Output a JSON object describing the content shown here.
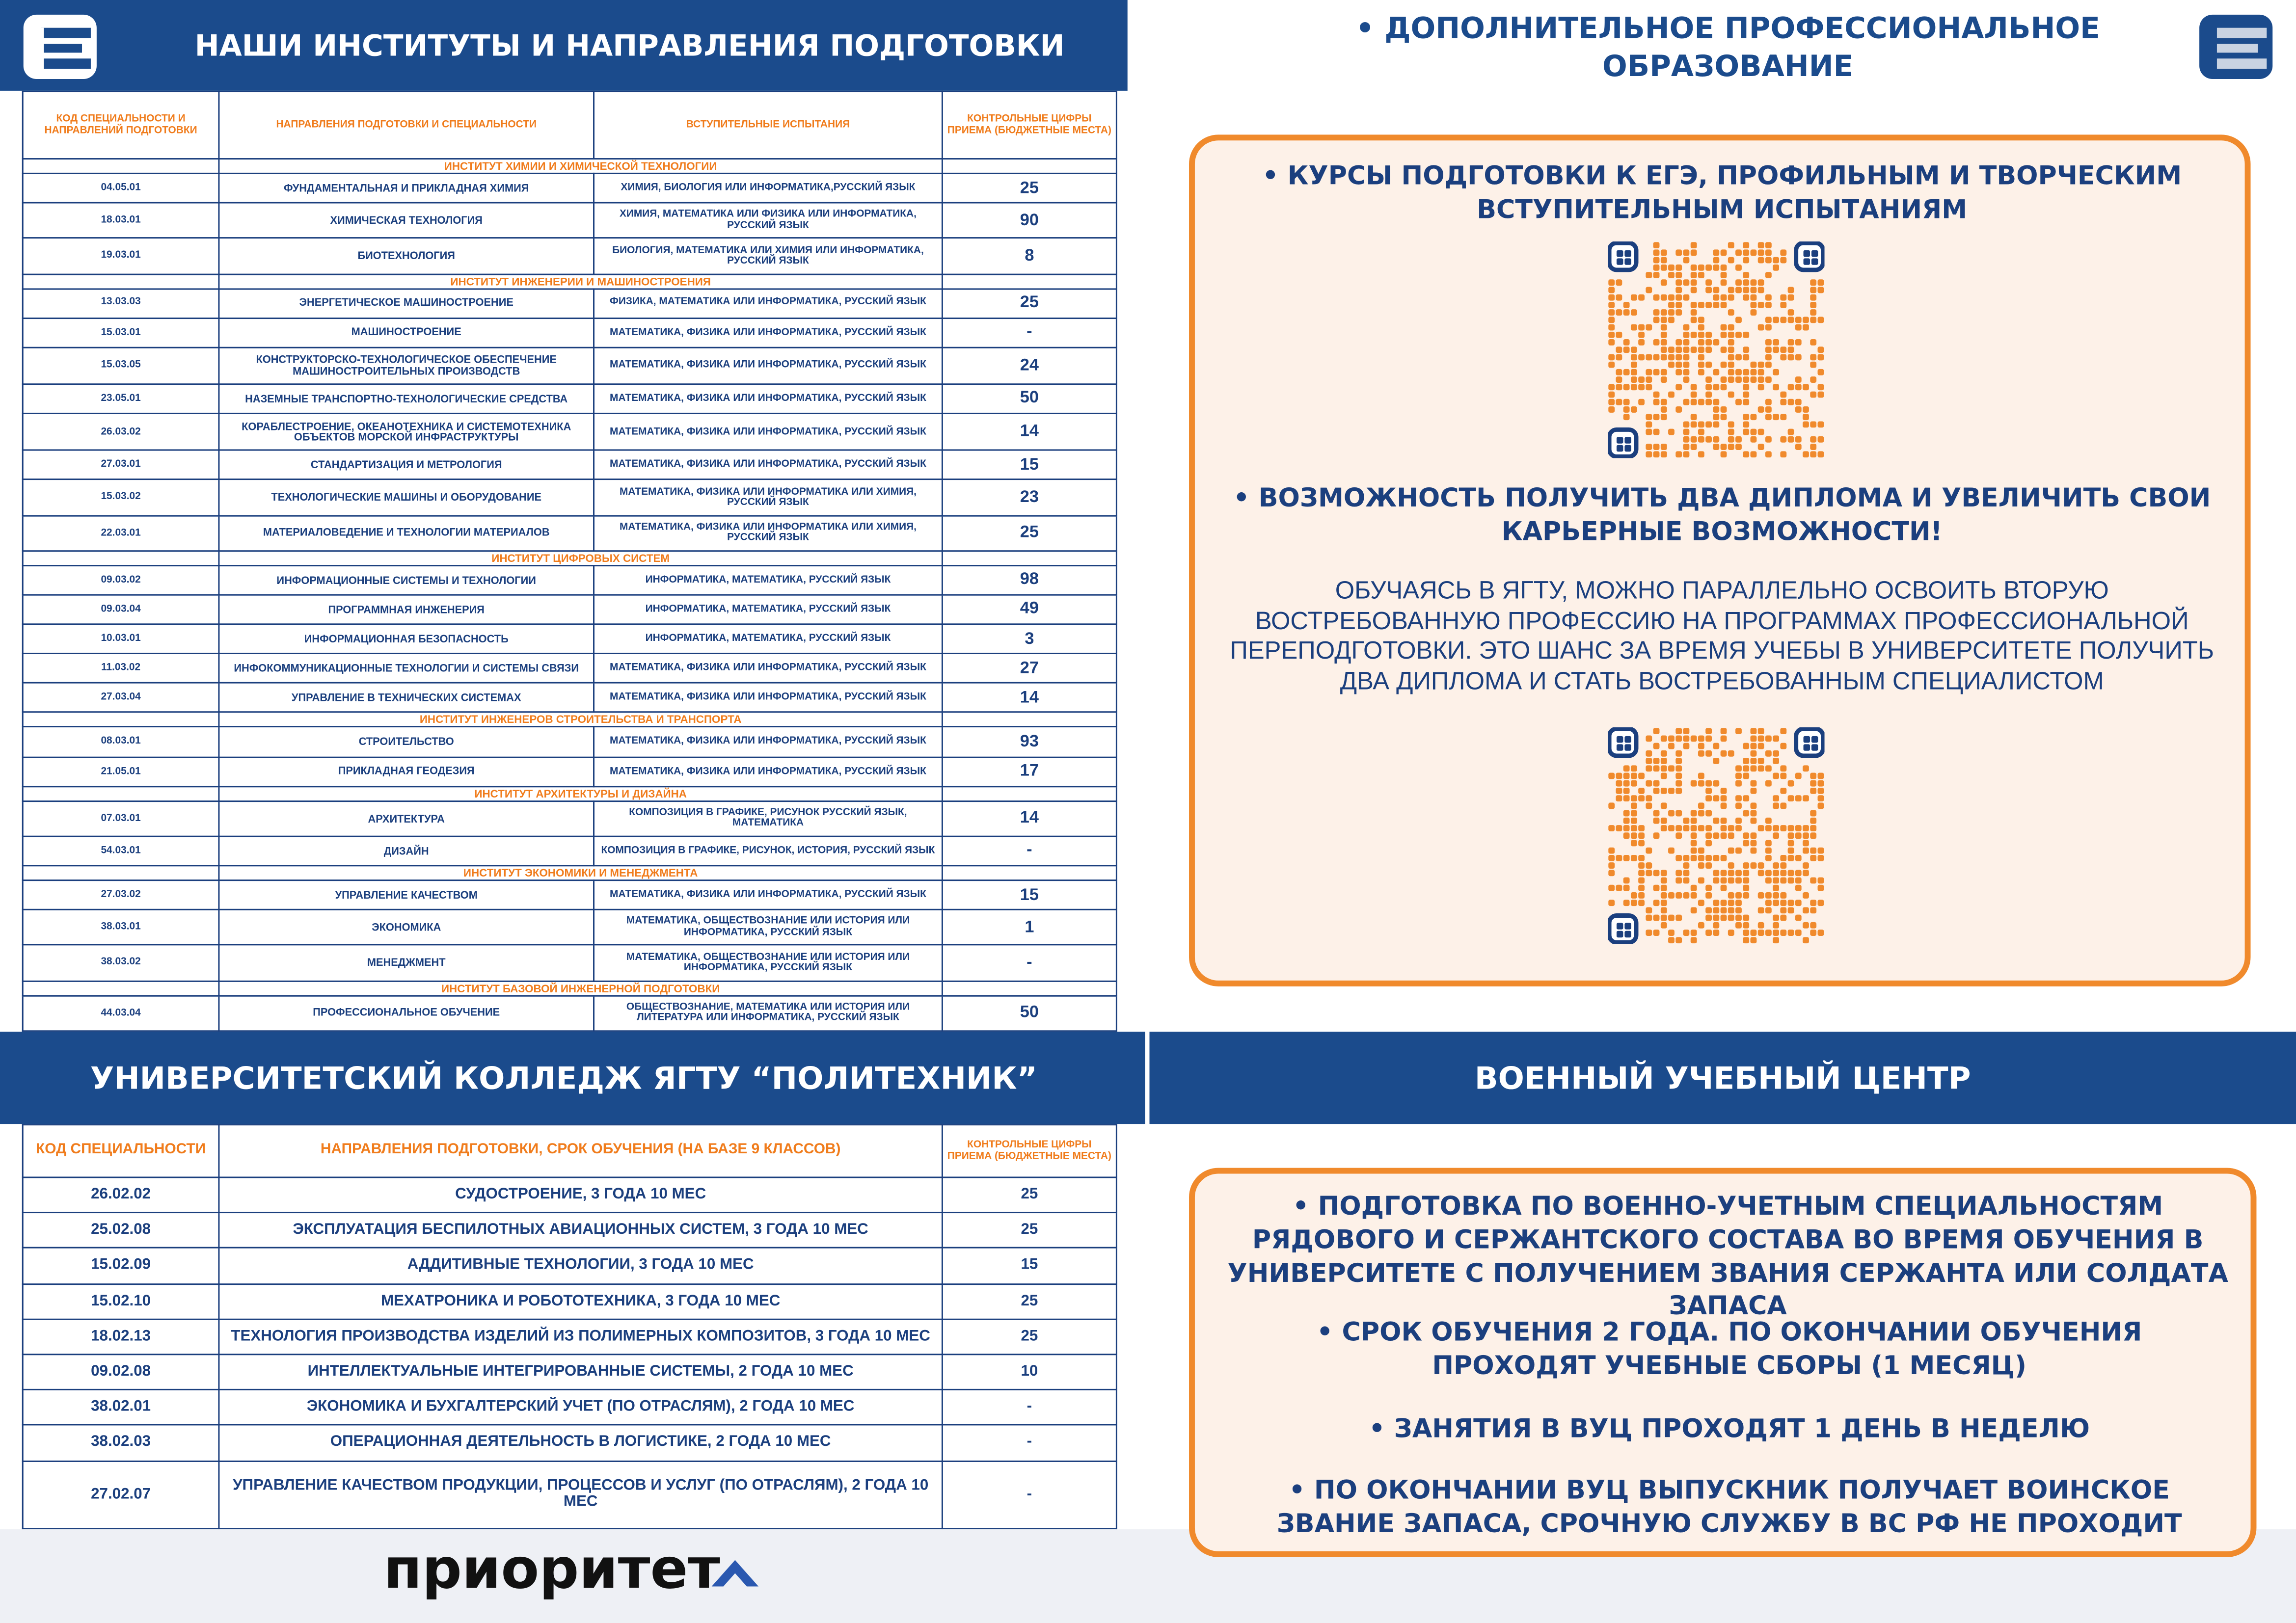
{
  "left_header": {
    "title": "НАШИ ИНСТИТУТЫ И НАПРАВЛЕНИЯ ПОДГОТОВКИ"
  },
  "institutes_table": {
    "headers": [
      "КОД СПЕЦИАЛЬНОСТИ И НАПРАВЛЕНИЙ ПОДГОТОВКИ",
      "НАПРАВЛЕНИЯ ПОДГОТОВКИ И СПЕЦИАЛЬНОСТИ",
      "ВСТУПИТЕЛЬНЫЕ ИСПЫТАНИЯ",
      "КОНТРОЛЬНЫЕ ЦИФРЫ ПРИЕМА (БЮДЖЕТНЫЕ МЕСТА)"
    ],
    "groups": [
      {
        "name": "ИНСТИТУТ ХИМИИ И ХИМИЧЕСКОЙ ТЕХНОЛОГИИ",
        "rows": [
          {
            "code": "04.05.01",
            "program": "ФУНДАМЕНТАЛЬНАЯ И ПРИКЛАДНАЯ ХИМИЯ",
            "exams": "ХИМИЯ, БИОЛОГИЯ ИЛИ ИНФОРМАТИКА,РУССКИЙ ЯЗЫК",
            "places": 25
          },
          {
            "code": "18.03.01",
            "program": "ХИМИЧЕСКАЯ ТЕХНОЛОГИЯ",
            "exams": "ХИМИЯ, МАТЕМАТИКА ИЛИ ФИЗИКА ИЛИ ИНФОРМАТИКА, РУССКИЙ ЯЗЫК",
            "places": 90
          },
          {
            "code": "19.03.01",
            "program": "БИОТЕХНОЛОГИЯ",
            "exams": "БИОЛОГИЯ, МАТЕМАТИКА ИЛИ ХИМИЯ ИЛИ ИНФОРМАТИКА, РУССКИЙ ЯЗЫК",
            "places": 8
          }
        ]
      },
      {
        "name": "ИНСТИТУТ ИНЖЕНЕРИИ И МАШИНОСТРОЕНИЯ",
        "rows": [
          {
            "code": "13.03.03",
            "program": "ЭНЕРГЕТИЧЕСКОЕ МАШИНОСТРОЕНИЕ",
            "exams": "ФИЗИКА, МАТЕМАТИКА ИЛИ ИНФОРМАТИКА, РУССКИЙ ЯЗЫК",
            "places": 25
          },
          {
            "code": "15.03.01",
            "program": "МАШИНОСТРОЕНИЕ",
            "exams": "МАТЕМАТИКА, ФИЗИКА ИЛИ ИНФОРМАТИКА, РУССКИЙ ЯЗЫК",
            "places": "-"
          },
          {
            "code": "15.03.05",
            "program": "КОНСТРУКТОРСКО-ТЕХНОЛОГИЧЕСКОЕ ОБЕСПЕЧЕНИЕ МАШИНОСТРОИТЕЛЬНЫХ ПРОИЗВОДСТВ",
            "exams": "МАТЕМАТИКА, ФИЗИКА ИЛИ ИНФОРМАТИКА, РУССКИЙ ЯЗЫК",
            "places": 24
          },
          {
            "code": "23.05.01",
            "program": "НАЗЕМНЫЕ ТРАНСПОРТНО-ТЕХНОЛОГИЧЕСКИЕ СРЕДСТВА",
            "exams": "МАТЕМАТИКА, ФИЗИКА ИЛИ ИНФОРМАТИКА, РУССКИЙ ЯЗЫК",
            "places": 50
          },
          {
            "code": "26.03.02",
            "program": "КОРАБЛЕСТРОЕНИЕ, ОКЕАНОТЕХНИКА И СИСТЕМОТЕХНИКА ОБЪЕКТОВ МОРСКОЙ ИНФРАСТРУКТУРЫ",
            "exams": "МАТЕМАТИКА, ФИЗИКА ИЛИ ИНФОРМАТИКА, РУССКИЙ ЯЗЫК",
            "places": 14
          },
          {
            "code": "27.03.01",
            "program": "СТАНДАРТИЗАЦИЯ И МЕТРОЛОГИЯ",
            "exams": "МАТЕМАТИКА, ФИЗИКА ИЛИ ИНФОРМАТИКА, РУССКИЙ ЯЗЫК",
            "places": 15
          },
          {
            "code": "15.03.02",
            "program": "ТЕХНОЛОГИЧЕСКИЕ МАШИНЫ И ОБОРУДОВАНИЕ",
            "exams": "МАТЕМАТИКА, ФИЗИКА ИЛИ ИНФОРМАТИКА ИЛИ ХИМИЯ, РУССКИЙ ЯЗЫК",
            "places": 23
          },
          {
            "code": "22.03.01",
            "program": "МАТЕРИАЛОВЕДЕНИЕ И ТЕХНОЛОГИИ МАТЕРИАЛОВ",
            "exams": "МАТЕМАТИКА, ФИЗИКА ИЛИ ИНФОРМАТИКА ИЛИ ХИМИЯ, РУССКИЙ ЯЗЫК",
            "places": 25
          }
        ]
      },
      {
        "name": "ИНСТИТУТ ЦИФРОВЫХ СИСТЕМ",
        "rows": [
          {
            "code": "09.03.02",
            "program": "ИНФОРМАЦИОННЫЕ СИСТЕМЫ И ТЕХНОЛОГИИ",
            "exams": "ИНФОРМАТИКА, МАТЕМАТИКА, РУССКИЙ ЯЗЫК",
            "places": 98
          },
          {
            "code": "09.03.04",
            "program": "ПРОГРАММНАЯ ИНЖЕНЕРИЯ",
            "exams": "ИНФОРМАТИКА, МАТЕМАТИКА, РУССКИЙ ЯЗЫК",
            "places": 49
          },
          {
            "code": "10.03.01",
            "program": "ИНФОРМАЦИОННАЯ БЕЗОПАСНОСТЬ",
            "exams": "ИНФОРМАТИКА, МАТЕМАТИКА, РУССКИЙ ЯЗЫК",
            "places": 3
          },
          {
            "code": "11.03.02",
            "program": "ИНФОКОММУНИКАЦИОННЫЕ ТЕХНОЛОГИИ И СИСТЕМЫ СВЯЗИ",
            "exams": "МАТЕМАТИКА, ФИЗИКА ИЛИ ИНФОРМАТИКА, РУССКИЙ ЯЗЫК",
            "places": 27
          },
          {
            "code": "27.03.04",
            "program": "УПРАВЛЕНИЕ В ТЕХНИЧЕСКИХ СИСТЕМАХ",
            "exams": "МАТЕМАТИКА, ФИЗИКА ИЛИ ИНФОРМАТИКА, РУССКИЙ ЯЗЫК",
            "places": 14
          }
        ]
      },
      {
        "name": "ИНСТИТУТ ИНЖЕНЕРОВ СТРОИТЕЛЬСТВА И ТРАНСПОРТА",
        "rows": [
          {
            "code": "08.03.01",
            "program": "СТРОИТЕЛЬСТВО",
            "exams": "МАТЕМАТИКА, ФИЗИКА ИЛИ ИНФОРМАТИКА, РУССКИЙ ЯЗЫК",
            "places": 93
          },
          {
            "code": "21.05.01",
            "program": "ПРИКЛАДНАЯ ГЕОДЕЗИЯ",
            "exams": "МАТЕМАТИКА, ФИЗИКА ИЛИ ИНФОРМАТИКА, РУССКИЙ ЯЗЫК",
            "places": 17
          }
        ]
      },
      {
        "name": "ИНСТИТУТ АРХИТЕКТУРЫ И ДИЗАЙНА",
        "rows": [
          {
            "code": "07.03.01",
            "program": "АРХИТЕКТУРА",
            "exams": "КОМПОЗИЦИЯ В ГРАФИКЕ, РИСУНОК РУССКИЙ ЯЗЫК, МАТЕМАТИКА",
            "places": 14
          },
          {
            "code": "54.03.01",
            "program": "ДИЗАЙН",
            "exams": "КОМПОЗИЦИЯ В ГРАФИКЕ, РИСУНОК, ИСТОРИЯ, РУССКИЙ ЯЗЫК",
            "places": "-"
          }
        ]
      },
      {
        "name": "ИНСТИТУТ ЭКОНОМИКИ И МЕНЕДЖМЕНТА",
        "rows": [
          {
            "code": "27.03.02",
            "program": "УПРАВЛЕНИЕ КАЧЕСТВОМ",
            "exams": "МАТЕМАТИКА, ФИЗИКА ИЛИ ИНФОРМАТИКА, РУССКИЙ ЯЗЫК",
            "places": 15
          },
          {
            "code": "38.03.01",
            "program": "ЭКОНОМИКА",
            "exams": "МАТЕМАТИКА, ОБЩЕСТВОЗНАНИЕ ИЛИ ИСТОРИЯ ИЛИ ИНФОРМАТИКА, РУССКИЙ ЯЗЫК",
            "places": 1
          },
          {
            "code": "38.03.02",
            "program": "МЕНЕДЖМЕНТ",
            "exams": "МАТЕМАТИКА, ОБЩЕСТВОЗНАНИЕ ИЛИ ИСТОРИЯ ИЛИ ИНФОРМАТИКА, РУССКИЙ ЯЗЫК",
            "places": "-"
          }
        ]
      },
      {
        "name": "ИНСТИТУТ БАЗОВОЙ ИНЖЕНЕРНОЙ ПОДГОТОВКИ",
        "rows": [
          {
            "code": "44.03.04",
            "program": "ПРОФЕССИОНАЛЬНОЕ ОБУЧЕНИЕ",
            "exams": "ОБЩЕСТВОЗНАНИЕ, МАТЕМАТИКА ИЛИ ИСТОРИЯ ИЛИ ЛИТЕРАТУРА ИЛИ ИНФОРМАТИКА, РУССКИЙ ЯЗЫК",
            "places": 50
          }
        ]
      }
    ]
  },
  "college": {
    "title": "УНИВЕРСИТЕТСКИЙ КОЛЛЕДЖ ЯГТУ “ПОЛИТЕХНИК”",
    "headers": [
      "КОД СПЕЦИАЛЬНОСТИ",
      "НАПРАВЛЕНИЯ ПОДГОТОВКИ, СРОК ОБУЧЕНИЯ (НА БАЗЕ 9 КЛАССОВ)",
      "КОНТРОЛЬНЫЕ ЦИФРЫ ПРИЕМА (БЮДЖЕТНЫЕ МЕСТА)"
    ],
    "rows": [
      {
        "code": "26.02.02",
        "program": "СУДОСТРОЕНИЕ, 3 ГОДА 10 МЕС",
        "places": 25
      },
      {
        "code": "25.02.08",
        "program": "ЭКСПЛУАТАЦИЯ БЕСПИЛОТНЫХ АВИАЦИОННЫХ СИСТЕМ, 3 ГОДА 10 МЕС",
        "places": 25
      },
      {
        "code": "15.02.09",
        "program": "АДДИТИВНЫЕ ТЕХНОЛОГИИ,  3 ГОДА 10 МЕС",
        "places": 15
      },
      {
        "code": "15.02.10",
        "program": "МЕХАТРОНИКА И РОБОТОТЕХНИКА, 3 ГОДА 10 МЕС",
        "places": 25
      },
      {
        "code": "18.02.13",
        "program": "ТЕХНОЛОГИЯ ПРОИЗВОДСТВА ИЗДЕЛИЙ ИЗ ПОЛИМЕРНЫХ КОМПОЗИТОВ, 3 ГОДА 10 МЕС",
        "places": 25
      },
      {
        "code": "09.02.08",
        "program": "ИНТЕЛЛЕКТУАЛЬНЫЕ ИНТЕГРИРОВАННЫЕ СИСТЕМЫ, 2 ГОДА 10 МЕС",
        "places": 10
      },
      {
        "code": "38.02.01",
        "program": "ЭКОНОМИКА И БУХГАЛТЕРСКИЙ УЧЕТ (ПО ОТРАСЛЯМ), 2 ГОДА 10 МЕС",
        "places": "-"
      },
      {
        "code": "38.02.03",
        "program": "ОПЕРАЦИОННАЯ ДЕЯТЕЛЬНОСТЬ В ЛОГИСТИКЕ, 2 ГОДА 10 МЕС",
        "places": "-"
      },
      {
        "code": "27.02.07",
        "program": "УПРАВЛЕНИЕ КАЧЕСТВОМ ПРОДУКЦИИ, ПРОЦЕССОВ И УСЛУГ (ПО ОТРАСЛЯМ), 2 ГОДА 10 МЕС",
        "places": "-"
      }
    ]
  },
  "dpo": {
    "title": "ДОПОЛНИТЕЛЬНОЕ ПРОФЕССИОНАЛЬНОЕ ОБРАЗОВАНИЕ",
    "bullets": [
      "КУРСЫ ПОДГОТОВКИ К ЕГЭ, ПРОФИЛЬНЫМ И ТВОРЧЕСКИМ ВСТУПИТЕЛЬНЫМ ИСПЫТАНИЯМ",
      "ВОЗМОЖНОСТЬ ПОЛУЧИТЬ ДВА ДИПЛОМА И УВЕЛИЧИТЬ СВОИ КАРЬЕРНЫЕ ВОЗМОЖНОСТИ!"
    ],
    "paragraph": "ОБУЧАЯСЬ В ЯГТУ,  МОЖНО ПАРАЛЛЕЛЬНО ОСВОИТЬ ВТОРУЮ ВОСТРЕБОВАННУЮ ПРОФЕССИЮ НА ПРОГРАММАХ ПРОФЕССИОНАЛЬНОЙ ПЕРЕПОДГОТОВКИ. ЭТО  ШАНС ЗА ВРЕМЯ УЧЕБЫ В УНИВЕРСИТЕТЕ ПОЛУЧИТЬ ДВА ДИПЛОМА И СТАТЬ ВОСТРЕБОВАННЫМ СПЕЦИАЛИСТОМ"
  },
  "vuc": {
    "title": "ВОЕННЫЙ УЧЕБНЫЙ ЦЕНТР",
    "bullets": [
      "ПОДГОТОВКА ПО ВОЕННО-УЧЕТНЫМ СПЕЦИАЛЬНОСТЯМ РЯДОВОГО И СЕРЖАНТСКОГО СОСТАВА ВО ВРЕМЯ ОБУЧЕНИЯ В УНИВЕРСИТЕТЕ С ПОЛУЧЕНИЕМ ЗВАНИЯ СЕРЖАНТА ИЛИ СОЛДАТА ЗАПАСА",
      "СРОК ОБУЧЕНИЯ 2 ГОДА. ПО ОКОНЧАНИИ ОБУЧЕНИЯ ПРОХОДЯТ УЧЕБНЫЕ СБОРЫ (1 МЕСЯЦ)",
      "ЗАНЯТИЯ В ВУЦ ПРОХОДЯТ 1 ДЕНЬ В НЕДЕЛЮ",
      "ПО ОКОНЧАНИИ ВУЦ ВЫПУСКНИК ПОЛУЧАЕТ ВОИНСКОЕ ЗВАНИЕ ЗАПАСА, СРОЧНУЮ СЛУЖБУ В ВС РФ НЕ ПРОХОДИТ"
    ]
  },
  "footer": {
    "brand": "приоритет"
  }
}
